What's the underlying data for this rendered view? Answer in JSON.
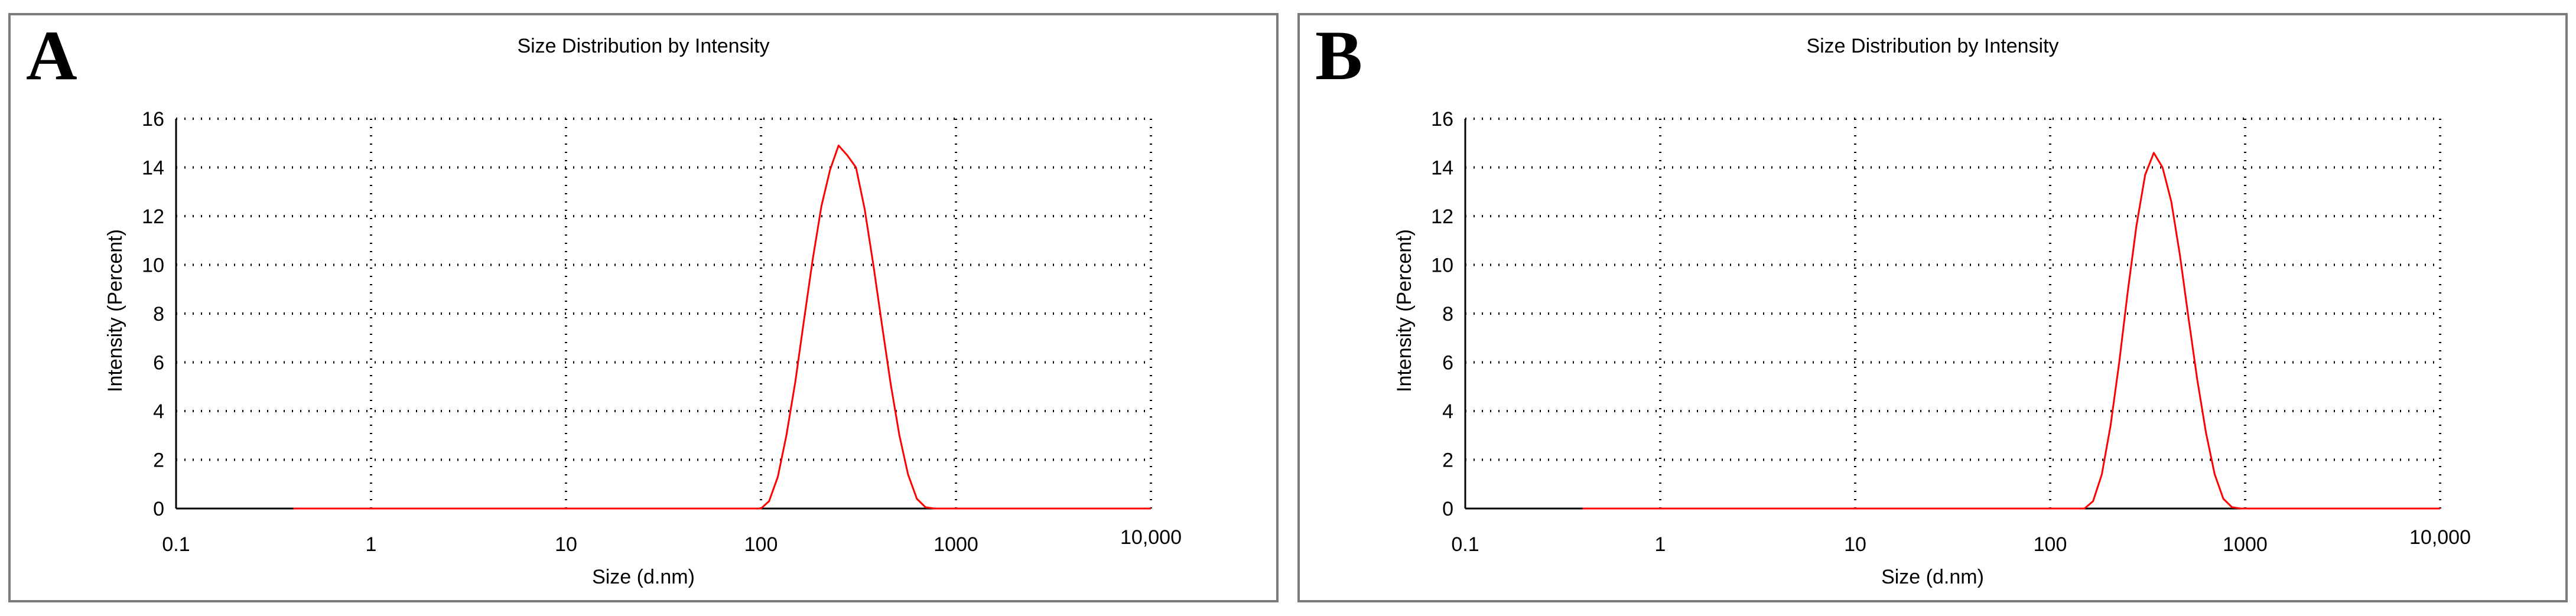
{
  "colors": {
    "series_line": "#ff0000",
    "grid": "#000000",
    "frame": "#7a7a7a"
  },
  "chart_data": [
    {
      "panel_label": "A",
      "type": "line",
      "title": "Size Distribution by Intensity",
      "xlabel": "Size (d.nm)",
      "ylabel": "Intensity (Percent)",
      "xscale": "log",
      "xlim": [
        0.1,
        10000
      ],
      "ylim": [
        0,
        16
      ],
      "xticks": [
        0.1,
        1,
        10,
        100,
        1000,
        10000
      ],
      "xtick_labels": [
        "0.1",
        "1",
        "10",
        "100",
        "1000",
        "10,000"
      ],
      "yticks": [
        0,
        2,
        4,
        6,
        8,
        10,
        12,
        14,
        16
      ],
      "ytick_labels": [
        "0",
        "2",
        "4",
        "6",
        "8",
        "10",
        "12",
        "14",
        "16"
      ],
      "grid": true,
      "series": [
        {
          "x": [
            0.4,
            1,
            10,
            100,
            110,
            122,
            135,
            150,
            166,
            184,
            204,
            226,
            250,
            277,
            307,
            340,
            377,
            418,
            463,
            513,
            568,
            630,
            698,
            773,
            857,
            950,
            1000,
            10000
          ],
          "y": [
            0,
            0,
            0,
            0,
            0.3,
            1.3,
            3.0,
            5.2,
            7.7,
            10.2,
            12.4,
            13.9,
            14.9,
            14.5,
            14.0,
            12.3,
            10.0,
            7.5,
            5.1,
            3.0,
            1.4,
            0.4,
            0.05,
            0,
            0,
            0,
            0,
            0
          ]
        }
      ]
    },
    {
      "panel_label": "B",
      "type": "line",
      "title": "Size Distribution by Intensity",
      "xlabel": "Size (d.nm)",
      "ylabel": "Intensity (Percent)",
      "xscale": "log",
      "xlim": [
        0.1,
        10000
      ],
      "ylim": [
        0,
        16
      ],
      "xticks": [
        0.1,
        1,
        10,
        100,
        1000,
        10000
      ],
      "xtick_labels": [
        "0.1",
        "1",
        "10",
        "100",
        "1000",
        "10,000"
      ],
      "yticks": [
        0,
        2,
        4,
        6,
        8,
        10,
        12,
        14,
        16
      ],
      "ytick_labels": [
        "0",
        "2",
        "4",
        "6",
        "8",
        "10",
        "12",
        "14",
        "16"
      ],
      "grid": true,
      "series": [
        {
          "x": [
            0.4,
            1,
            10,
            100,
            150,
            166,
            184,
            204,
            226,
            250,
            277,
            307,
            340,
            377,
            418,
            463,
            513,
            568,
            630,
            698,
            773,
            857,
            950,
            1050,
            1150,
            10000
          ],
          "y": [
            0,
            0,
            0,
            0,
            0,
            0.3,
            1.4,
            3.4,
            6.0,
            8.9,
            11.6,
            13.7,
            14.6,
            14.0,
            12.6,
            10.4,
            7.8,
            5.3,
            3.1,
            1.4,
            0.4,
            0.05,
            0,
            0,
            0,
            0
          ]
        }
      ]
    }
  ]
}
